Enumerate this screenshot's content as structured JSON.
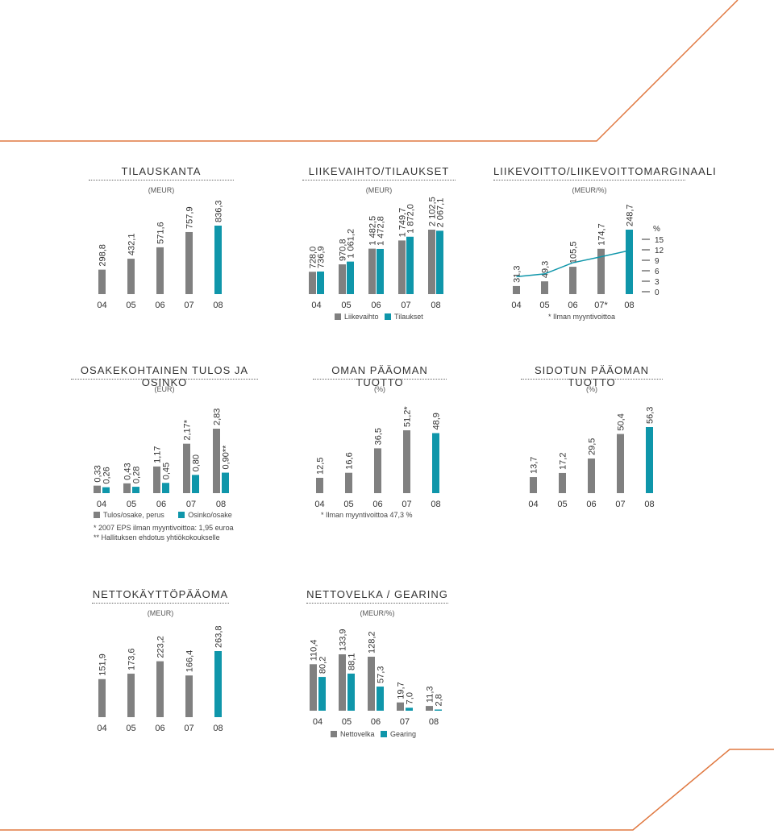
{
  "colors": {
    "gray": "#808080",
    "teal": "#0f96aa",
    "orange": "#e07840"
  },
  "chart_data": [
    {
      "id": "tilauskanta",
      "type": "bar",
      "title": "TILAUSKANTA",
      "unit": "(MEUR)",
      "categories": [
        "04",
        "05",
        "06",
        "07",
        "08"
      ],
      "series": [
        {
          "values": [
            298.8,
            432.1,
            571.6,
            757.9,
            836.3
          ],
          "labels": [
            "298,8",
            "432,1",
            "571,6",
            "757,9",
            "836,3"
          ],
          "colors": [
            "gray",
            "gray",
            "gray",
            "gray",
            "teal"
          ]
        }
      ],
      "ylim": [
        0,
        836.3
      ]
    },
    {
      "id": "liikevaihto",
      "type": "bar",
      "title": "LIIKEVAIHTO/TILAUKSET",
      "unit": "(MEUR)",
      "categories": [
        "04",
        "05",
        "06",
        "07",
        "08"
      ],
      "series": [
        {
          "name": "Liikevaihto",
          "values": [
            728.0,
            970.8,
            1482.5,
            1749.7,
            2102.5
          ],
          "labels": [
            "728,0",
            "970,8",
            "1 482,5",
            "1 749,7",
            "2 102,5"
          ],
          "color": "gray"
        },
        {
          "name": "Tilaukset",
          "values": [
            736.9,
            1061.2,
            1472.8,
            1872.0,
            2067.1
          ],
          "labels": [
            "736,9",
            "1 061,2",
            "1 472,8",
            "1 872,0",
            "2 067,1"
          ],
          "color": "teal"
        }
      ],
      "ylim": [
        0,
        2102.5
      ]
    },
    {
      "id": "liikevoitto",
      "type": "bar",
      "title": "LIIKEVOITTO/LIIKEVOITTOMARGINAALI",
      "unit": "(MEUR/%)",
      "categories": [
        "04",
        "05",
        "06",
        "07*",
        "08"
      ],
      "series": [
        {
          "values": [
            31.3,
            49.3,
            105.5,
            174.7,
            248.7
          ],
          "labels": [
            "31,3",
            "49,3",
            "105,5",
            "174,7",
            "248,7"
          ],
          "colors": [
            "gray",
            "gray",
            "gray",
            "gray",
            "teal"
          ]
        }
      ],
      "margin_line": [
        4.3,
        5.1,
        8.3,
        10.0,
        11.8
      ],
      "y2_ticks": [
        "15",
        "12",
        "9",
        "6",
        "3",
        "0"
      ],
      "y2_unit": "%",
      "ylim": [
        0,
        248.7
      ],
      "note": "* Ilman myyntivoittoa"
    },
    {
      "id": "osakekohtainen",
      "type": "bar",
      "title": "OSAKEKOHTAINEN TULOS JA OSINKO",
      "unit": "(EUR)",
      "categories": [
        "04",
        "05",
        "06",
        "07",
        "08"
      ],
      "series": [
        {
          "name": "Tulos/osake, perus",
          "values": [
            0.33,
            0.43,
            1.17,
            2.17,
            2.83
          ],
          "labels": [
            "0,33",
            "0,43",
            "1,17",
            "2,17*",
            "2,83"
          ],
          "color": "gray"
        },
        {
          "name": "Osinko/osake",
          "values": [
            0.26,
            0.28,
            0.45,
            0.8,
            0.9
          ],
          "labels": [
            "0,26",
            "0,28",
            "0,45",
            "0,80",
            "0,90**"
          ],
          "color": "teal"
        }
      ],
      "ylim": [
        0,
        2.83
      ],
      "notes": [
        "* 2007 EPS ilman myyntivoittoa: 1,95 euroa",
        "** Hallituksen ehdotus yhtiökokoukselle"
      ]
    },
    {
      "id": "omanpaaoman",
      "type": "bar",
      "title": "OMAN PÄÄOMAN TUOTTO",
      "unit": "(%)",
      "categories": [
        "04",
        "05",
        "06",
        "07",
        "08"
      ],
      "series": [
        {
          "values": [
            12.5,
            16.6,
            36.5,
            51.2,
            48.9
          ],
          "labels": [
            "12,5",
            "16,6",
            "36,5",
            "51,2*",
            "48,9"
          ],
          "colors": [
            "gray",
            "gray",
            "gray",
            "gray",
            "teal"
          ]
        }
      ],
      "ylim": [
        0,
        51.2
      ],
      "note": "* Ilman myyntivoittoa 47,3 %"
    },
    {
      "id": "sidotunpaaoman",
      "type": "bar",
      "title": "SIDOTUN PÄÄOMAN TUOTTO",
      "unit": "(%)",
      "categories": [
        "04",
        "05",
        "06",
        "07",
        "08"
      ],
      "series": [
        {
          "values": [
            13.7,
            17.2,
            29.5,
            50.4,
            56.3
          ],
          "labels": [
            "13,7",
            "17,2",
            "29,5",
            "50,4",
            "56,3"
          ],
          "colors": [
            "gray",
            "gray",
            "gray",
            "gray",
            "teal"
          ]
        }
      ],
      "ylim": [
        0,
        56.3
      ]
    },
    {
      "id": "nettokayttopaaoma",
      "type": "bar",
      "title": "NETTOKÄYTTÖPÄÄOMA",
      "unit": "(MEUR)",
      "categories": [
        "04",
        "05",
        "06",
        "07",
        "08"
      ],
      "series": [
        {
          "values": [
            151.9,
            173.6,
            223.2,
            166.4,
            263.8
          ],
          "labels": [
            "151,9",
            "173,6",
            "223,2",
            "166,4",
            "263,8"
          ],
          "colors": [
            "gray",
            "gray",
            "gray",
            "gray",
            "teal"
          ]
        }
      ],
      "ylim": [
        0,
        263.8
      ]
    },
    {
      "id": "nettovelka",
      "type": "bar",
      "title": "NETTOVELKA / GEARING",
      "unit": "(MEUR/%)",
      "categories": [
        "04",
        "05",
        "06",
        "07",
        "08"
      ],
      "series": [
        {
          "name": "Nettovelka",
          "values": [
            110.4,
            133.9,
            128.2,
            19.7,
            11.3
          ],
          "labels": [
            "110,4",
            "133,9",
            "128,2",
            "19,7",
            "11,3"
          ],
          "color": "gray"
        },
        {
          "name": "Gearing",
          "values": [
            80.2,
            88.1,
            57.3,
            7.0,
            2.8
          ],
          "labels": [
            "80,2",
            "88,1",
            "57,3",
            "7,0",
            "2,8"
          ],
          "color": "teal"
        }
      ],
      "ylim": [
        0,
        133.9
      ]
    }
  ]
}
